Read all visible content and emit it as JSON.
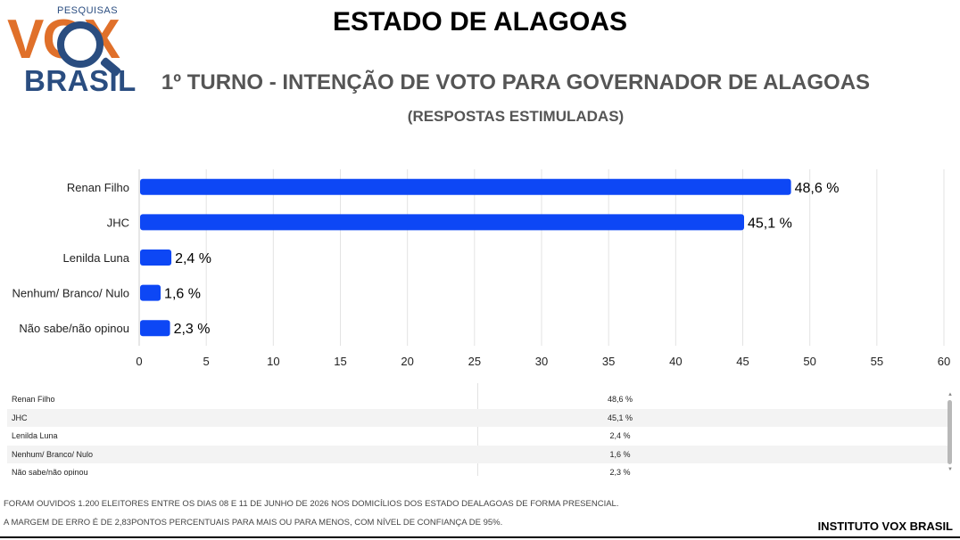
{
  "logo": {
    "top_text": "PESQUISAS",
    "brand_main": "VOX",
    "brand_sub": "BRASIL",
    "colors": {
      "orange": "#e0702a",
      "blue": "#2a4d80"
    }
  },
  "header": {
    "title": "ESTADO DE ALAGOAS",
    "subtitle": "1º TURNO - INTENÇÃO DE VOTO PARA GOVERNADOR DE ALAGOAS",
    "note": "(RESPOSTAS ESTIMULADAS)"
  },
  "chart_data": {
    "type": "bar",
    "orientation": "horizontal",
    "categories": [
      "Renan Filho",
      "JHC",
      "Lenilda Luna",
      "Nenhum/ Branco/ Nulo",
      "Não sabe/não opinou"
    ],
    "values": [
      48.6,
      45.1,
      2.4,
      1.6,
      2.3
    ],
    "value_labels": [
      "48,6 %",
      "45,1 %",
      "2,4 %",
      "1,6 %",
      "2,3 %"
    ],
    "xlim": [
      0,
      60
    ],
    "xticks": [
      0,
      5,
      10,
      15,
      20,
      25,
      30,
      35,
      40,
      45,
      50,
      55,
      60
    ],
    "grid": true,
    "bar_color": "#0d47f5"
  },
  "table": {
    "rows": [
      {
        "name": "Renan Filho",
        "value": "48,6 %"
      },
      {
        "name": "JHC",
        "value": "45,1 %"
      },
      {
        "name": "Lenilda Luna",
        "value": "2,4 %"
      },
      {
        "name": "Nenhum/ Branco/ Nulo",
        "value": "1,6 %"
      },
      {
        "name": "Não sabe/não opinou",
        "value": "2,3 %"
      }
    ]
  },
  "notes": {
    "line1": "FORAM OUVIDOS 1.200 ELEITORES ENTRE OS DIAS 08 E 11 DE JUNHO DE 2026 NOS DOMICÍLIOS DOS ESTADO DEALAGOAS DE FORMA PRESENCIAL.",
    "line2": "A MARGEM DE ERRO É DE 2,83PONTOS PERCENTUAIS PARA MAIS OU PARA MENOS, COM NÍVEL DE CONFIANÇA DE 95%."
  },
  "footer": {
    "institute": "INSTITUTO VOX BRASIL"
  }
}
